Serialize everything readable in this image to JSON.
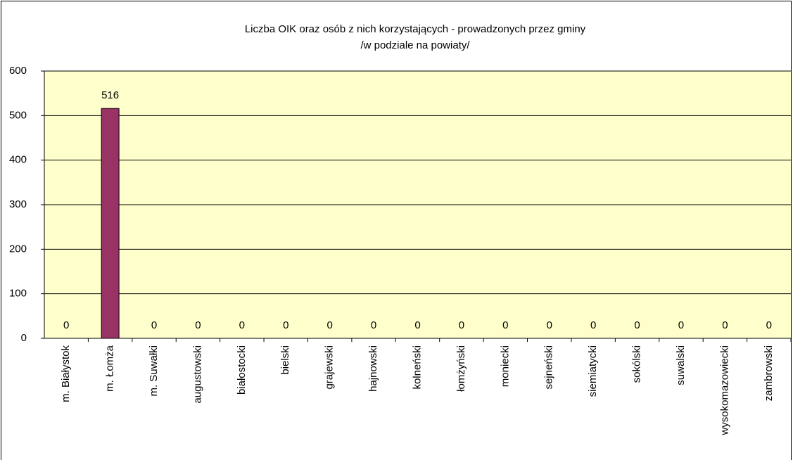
{
  "chart_data": {
    "type": "bar",
    "title": "Liczba OIK oraz osób z nich korzystających - prowadzonych przez gminy",
    "subtitle": "/w podziale na powiaty/",
    "categories": [
      "m. Białystok",
      "m. Łomża",
      "m. Suwałki",
      "augustowski",
      "białostocki",
      "bielski",
      "grajewski",
      "hajnowski",
      "kolneński",
      "łomżyński",
      "moniecki",
      "sejneński",
      "siemiatycki",
      "sokólski",
      "suwalski",
      "wysokomazowiecki",
      "zambrowski"
    ],
    "values": [
      0,
      516,
      0,
      0,
      0,
      0,
      0,
      0,
      0,
      0,
      0,
      0,
      0,
      0,
      0,
      0,
      0
    ],
    "color": "#993366",
    "ylim": [
      0,
      600
    ],
    "yticks": [
      0,
      100,
      200,
      300,
      400,
      500,
      600
    ],
    "grid": true
  }
}
